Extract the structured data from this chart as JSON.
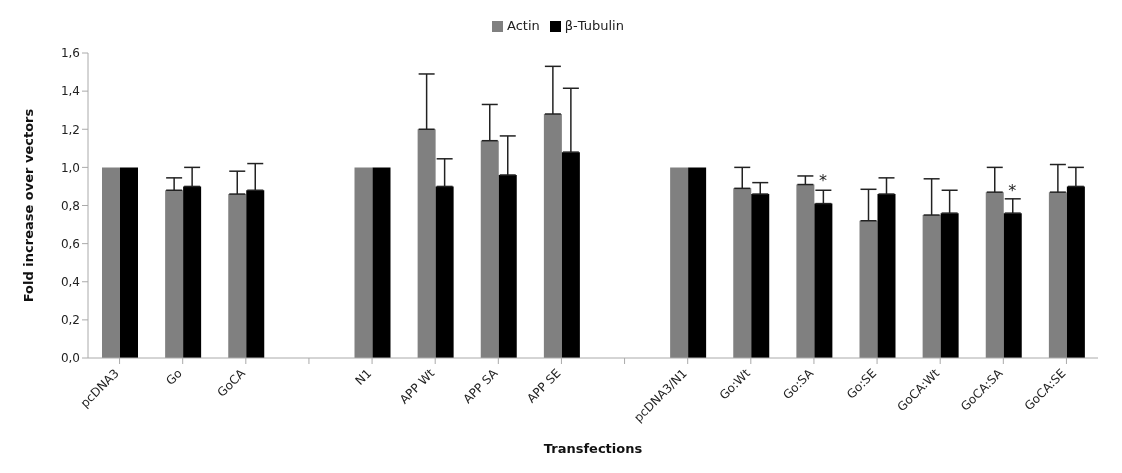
{
  "chart_data": {
    "type": "bar",
    "xlabel": "Transfections",
    "ylabel": "Fold increase over vectors",
    "categories": [
      "pcDNA3",
      "Go",
      "GoCA",
      null,
      "N1",
      "APP Wt",
      "APP SA",
      "APP SE",
      null,
      "pcDNA3/N1",
      "Go:Wt",
      "Go:SA",
      "Go:SE",
      "GoCA:Wt",
      "GoCA:SA",
      "GoCA:SE"
    ],
    "series": [
      {
        "name": "Actin",
        "color": "#808080",
        "values": [
          1.0,
          0.88,
          0.86,
          null,
          1.0,
          1.2,
          1.14,
          1.28,
          null,
          1.0,
          0.89,
          0.91,
          0.72,
          0.75,
          0.87,
          0.87
        ],
        "errors": [
          null,
          [
            0.88,
            0.945
          ],
          [
            0.86,
            0.98
          ],
          null,
          null,
          [
            1.2,
            1.49
          ],
          [
            1.14,
            1.33
          ],
          [
            1.28,
            1.53
          ],
          null,
          null,
          [
            0.89,
            1.0
          ],
          [
            0.91,
            0.955
          ],
          [
            0.72,
            0.885
          ],
          [
            0.75,
            0.94
          ],
          [
            0.87,
            1.0
          ],
          [
            0.87,
            1.015
          ]
        ]
      },
      {
        "name": "β-Tubulin",
        "color": "#000000",
        "values": [
          1.0,
          0.9,
          0.88,
          null,
          1.0,
          0.9,
          0.96,
          1.08,
          null,
          1.0,
          0.86,
          0.81,
          0.86,
          0.76,
          0.76,
          0.9
        ],
        "errors": [
          null,
          [
            0.9,
            1.0
          ],
          [
            0.88,
            1.02
          ],
          null,
          null,
          [
            0.9,
            1.045
          ],
          [
            0.96,
            1.165
          ],
          [
            1.08,
            1.415
          ],
          null,
          null,
          [
            0.86,
            0.92
          ],
          [
            0.81,
            0.88
          ],
          [
            0.86,
            0.945
          ],
          [
            0.76,
            0.88
          ],
          [
            0.76,
            0.835
          ],
          [
            0.9,
            1.0
          ]
        ]
      }
    ],
    "ylim": [
      0,
      1.6
    ],
    "yticks": [
      {
        "value": 0,
        "label": "0,0"
      },
      {
        "value": 0.2,
        "label": "0,2"
      },
      {
        "value": 0.4,
        "label": "0,4"
      },
      {
        "value": 0.6,
        "label": "0,6"
      },
      {
        "value": 0.8,
        "label": "0,8"
      },
      {
        "value": 1.0,
        "label": "1,0"
      },
      {
        "value": 1.2,
        "label": "1,2"
      },
      {
        "value": 1.4,
        "label": "1,4"
      },
      {
        "value": 1.6,
        "label": "1,6"
      }
    ],
    "annotations": [
      {
        "text": "*",
        "x": "Go:SA",
        "y": 0.9
      },
      {
        "text": "*",
        "x": "GoCA:SA",
        "y": 0.85
      }
    ],
    "grid": false,
    "legend": "top"
  }
}
